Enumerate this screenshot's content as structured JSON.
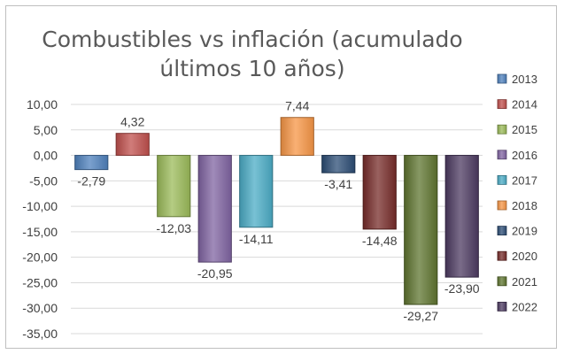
{
  "chart_data": {
    "type": "bar",
    "title": "Combustibles vs inflación (acumulado últimos 10 años)",
    "title_lines": [
      "Combustibles vs inflación (acumulado",
      "últimos 10 años)"
    ],
    "xlabel": "",
    "ylabel": "",
    "ylim": [
      -35,
      10
    ],
    "yticks": [
      "10,00",
      "5,00",
      "0,00",
      "-5,00",
      "-10,00",
      "-15,00",
      "-20,00",
      "-25,00",
      "-30,00",
      "-35,00"
    ],
    "grid": true,
    "legend_position": "right",
    "series": [
      {
        "name": "2013",
        "value": -2.79,
        "label": "-2,79",
        "color": "#4f81bd"
      },
      {
        "name": "2014",
        "value": 4.32,
        "label": "4,32",
        "color": "#c0504d"
      },
      {
        "name": "2015",
        "value": -12.03,
        "label": "-12,03",
        "color": "#9bbb59"
      },
      {
        "name": "2016",
        "value": -20.95,
        "label": "-20,95",
        "color": "#8064a2"
      },
      {
        "name": "2017",
        "value": -14.11,
        "label": "-14,11",
        "color": "#4bacc6"
      },
      {
        "name": "2018",
        "value": 7.44,
        "label": "7,44",
        "color": "#f79646"
      },
      {
        "name": "2019",
        "value": -3.41,
        "label": "-3,41",
        "color": "#2c4d75"
      },
      {
        "name": "2020",
        "value": -14.48,
        "label": "-14,48",
        "color": "#772c2a"
      },
      {
        "name": "2021",
        "value": -29.27,
        "label": "-29,27",
        "color": "#5f7530"
      },
      {
        "name": "2022",
        "value": -23.9,
        "label": "-23,90",
        "color": "#4d3b62"
      }
    ]
  }
}
